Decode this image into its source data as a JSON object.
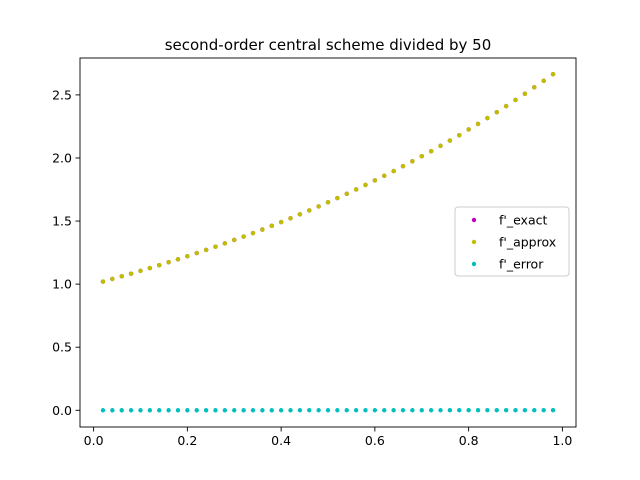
{
  "chart_data": {
    "type": "scatter",
    "title": "second-order central scheme divided by 50",
    "xlabel": "",
    "ylabel": "",
    "xlim": [
      -0.029,
      1.029
    ],
    "ylim": [
      -0.1325,
      2.7925
    ],
    "xticks": [
      0.0,
      0.2,
      0.4,
      0.6,
      0.8,
      1.0
    ],
    "xtick_labels": [
      "0.0",
      "0.2",
      "0.4",
      "0.6",
      "0.8",
      "1.0"
    ],
    "yticks": [
      0.0,
      0.5,
      1.0,
      1.5,
      2.0,
      2.5
    ],
    "ytick_labels": [
      "0.0",
      "0.5",
      "1.0",
      "1.5",
      "2.0",
      "2.5"
    ],
    "grid": false,
    "legend_position": "center-right",
    "x": [
      0.02,
      0.04,
      0.06,
      0.08,
      0.1,
      0.12,
      0.14,
      0.16,
      0.18,
      0.2,
      0.22,
      0.24,
      0.26,
      0.28,
      0.3,
      0.32,
      0.34,
      0.36,
      0.38,
      0.4,
      0.42,
      0.44,
      0.46,
      0.48,
      0.5,
      0.52,
      0.54,
      0.56,
      0.58,
      0.6,
      0.62,
      0.64,
      0.66,
      0.68,
      0.7,
      0.72,
      0.74,
      0.76,
      0.78,
      0.8,
      0.82,
      0.84,
      0.86,
      0.88,
      0.9,
      0.92,
      0.94,
      0.96,
      0.98
    ],
    "series": [
      {
        "name": "f'_exact",
        "color": "#bf00bf",
        "values": [
          1.02,
          1.041,
          1.062,
          1.083,
          1.105,
          1.127,
          1.15,
          1.174,
          1.197,
          1.221,
          1.246,
          1.271,
          1.297,
          1.323,
          1.35,
          1.377,
          1.405,
          1.433,
          1.462,
          1.492,
          1.522,
          1.553,
          1.584,
          1.616,
          1.649,
          1.682,
          1.716,
          1.751,
          1.786,
          1.822,
          1.859,
          1.896,
          1.935,
          1.974,
          2.014,
          2.054,
          2.096,
          2.138,
          2.181,
          2.226,
          2.27,
          2.316,
          2.363,
          2.411,
          2.46,
          2.509,
          2.56,
          2.612,
          2.664
        ]
      },
      {
        "name": "f'_approx",
        "color": "#bfbf00",
        "values": [
          1.02,
          1.041,
          1.062,
          1.083,
          1.105,
          1.127,
          1.15,
          1.174,
          1.197,
          1.221,
          1.246,
          1.271,
          1.297,
          1.323,
          1.35,
          1.377,
          1.405,
          1.433,
          1.462,
          1.492,
          1.522,
          1.553,
          1.584,
          1.616,
          1.649,
          1.682,
          1.716,
          1.751,
          1.786,
          1.822,
          1.859,
          1.896,
          1.935,
          1.974,
          2.014,
          2.054,
          2.096,
          2.138,
          2.181,
          2.226,
          2.27,
          2.316,
          2.363,
          2.411,
          2.46,
          2.509,
          2.56,
          2.612,
          2.664
        ]
      },
      {
        "name": "f'_error",
        "color": "#00bfbf",
        "values": [
          0.0002,
          0.0002,
          0.0002,
          0.0002,
          0.0002,
          0.0002,
          0.0002,
          0.0002,
          0.0002,
          0.0002,
          0.0002,
          0.0002,
          0.0002,
          0.0002,
          0.0002,
          0.0002,
          0.0002,
          0.0002,
          0.0002,
          0.0002,
          0.0002,
          0.0003,
          0.0003,
          0.0003,
          0.0003,
          0.0003,
          0.0003,
          0.0003,
          0.0003,
          0.0003,
          0.0003,
          0.0003,
          0.0003,
          0.0003,
          0.0003,
          0.0003,
          0.0003,
          0.0004,
          0.0004,
          0.0004,
          0.0004,
          0.0004,
          0.0004,
          0.0004,
          0.0004,
          0.0004,
          0.0004,
          0.0004,
          0.0004
        ]
      }
    ]
  }
}
